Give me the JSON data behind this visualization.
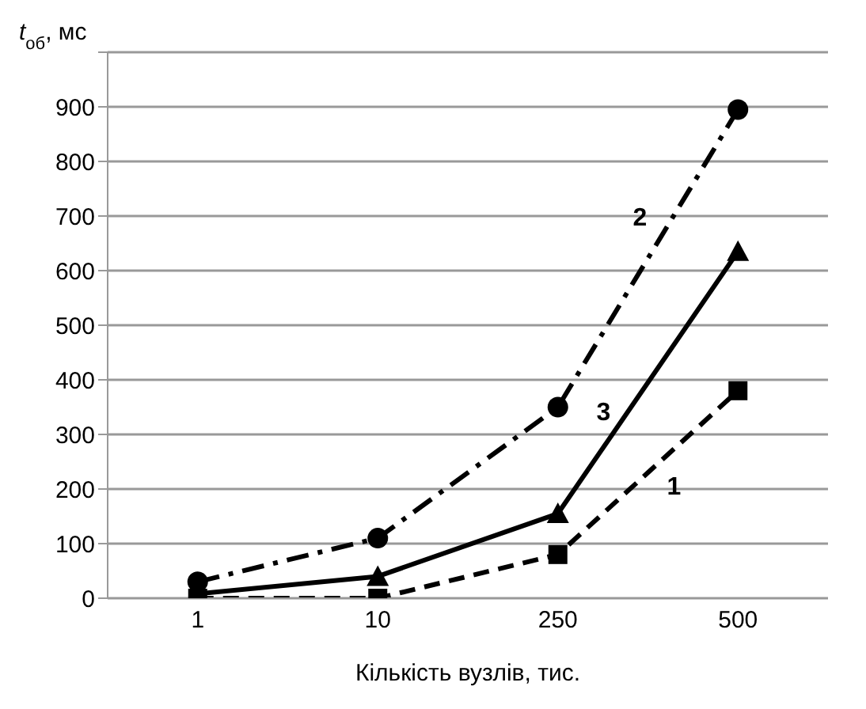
{
  "chart_data": {
    "type": "line",
    "xlabel": "Кількість вузлів, тис.",
    "ylabel": "t$_{об}$, мс",
    "categories": [
      "1",
      "10",
      "250",
      "500"
    ],
    "series": [
      {
        "name": "1",
        "color": "#000000",
        "marker": "square",
        "line_style": "dashed",
        "values": [
          0,
          0,
          80,
          380
        ]
      },
      {
        "name": "2",
        "color": "#000000",
        "marker": "circle",
        "line_style": "dashdot",
        "values": [
          30,
          110,
          350,
          895
        ]
      },
      {
        "name": "3",
        "color": "#000000",
        "marker": "triangle",
        "line_style": "solid",
        "values": [
          8,
          40,
          155,
          635
        ]
      }
    ],
    "ylim": [
      0,
      1000
    ],
    "yticks": [
      0,
      100,
      200,
      300,
      400,
      500,
      600,
      700,
      800,
      900,
      {
        "value": 1000,
        "label": null
      }
    ],
    "grid": "y"
  }
}
